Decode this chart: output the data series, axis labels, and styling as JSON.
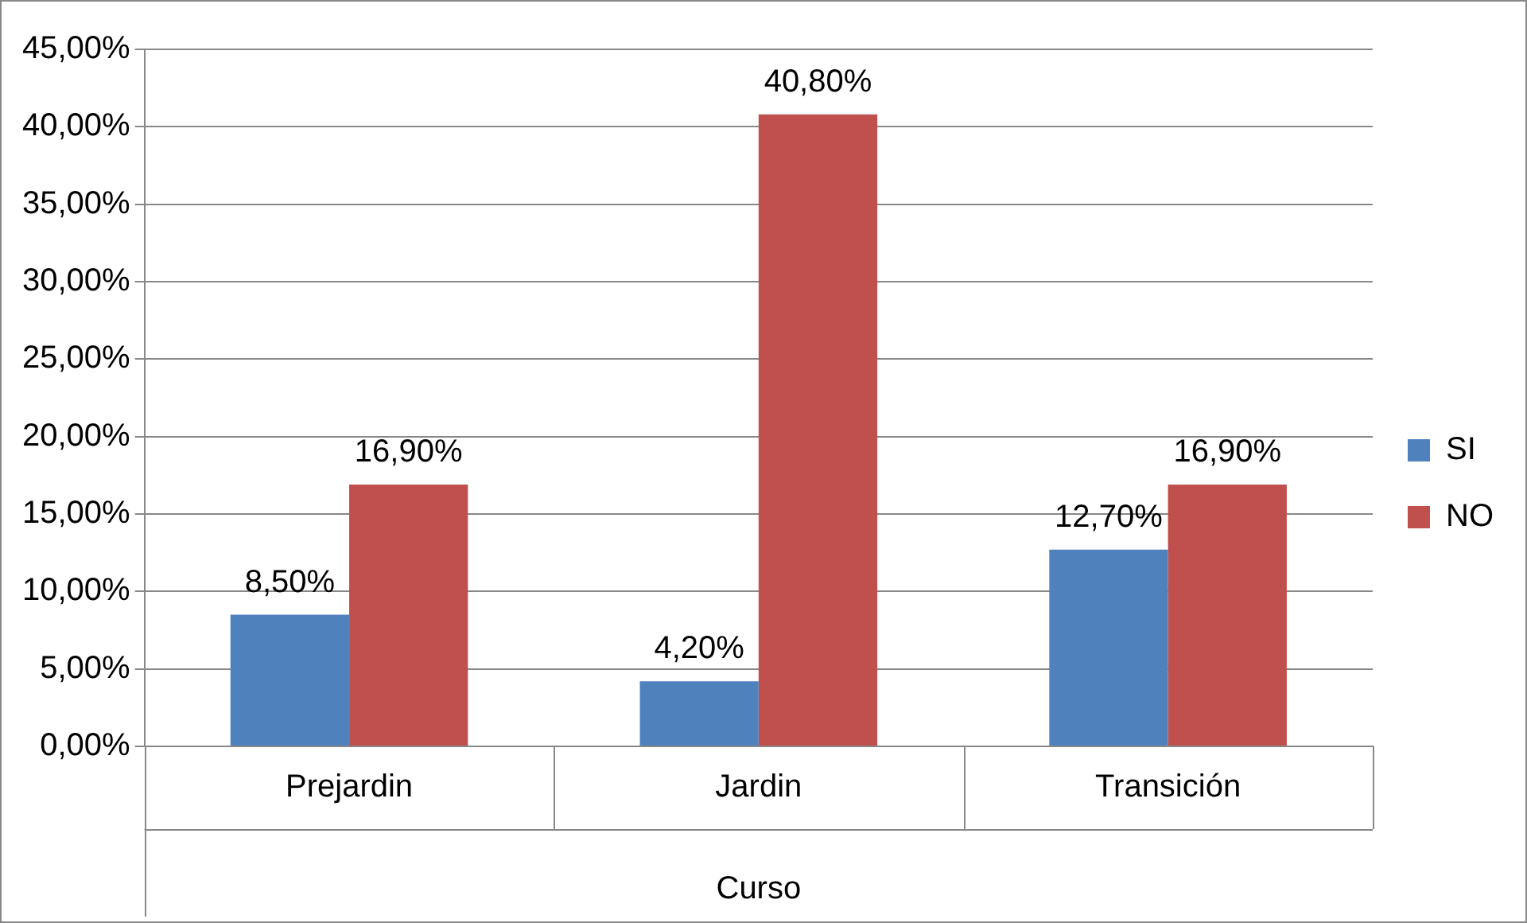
{
  "chart_data": {
    "type": "bar",
    "xlabel": "Curso",
    "categories": [
      "Prejardin",
      "Jardin",
      "Transición"
    ],
    "series": [
      {
        "name": "SI",
        "color": "#4f81bd",
        "values": [
          8.5,
          4.2,
          12.7
        ],
        "value_labels": [
          "8,50%",
          "4,20%",
          "12,70%"
        ]
      },
      {
        "name": "NO",
        "color": "#c0504d",
        "values": [
          16.9,
          40.8,
          16.9
        ],
        "value_labels": [
          "16,90%",
          "40,80%",
          "16,90%"
        ]
      }
    ],
    "ylim": [
      0,
      45
    ],
    "yticks": [
      {
        "value": 0,
        "label": "0,00%"
      },
      {
        "value": 5,
        "label": "5,00%"
      },
      {
        "value": 10,
        "label": "10,00%"
      },
      {
        "value": 15,
        "label": "15,00%"
      },
      {
        "value": 20,
        "label": "20,00%"
      },
      {
        "value": 25,
        "label": "25,00%"
      },
      {
        "value": 30,
        "label": "30,00%"
      },
      {
        "value": 35,
        "label": "35,00%"
      },
      {
        "value": 40,
        "label": "40,00%"
      },
      {
        "value": 45,
        "label": "45,00%"
      }
    ],
    "grid": "y",
    "legend": "right"
  }
}
